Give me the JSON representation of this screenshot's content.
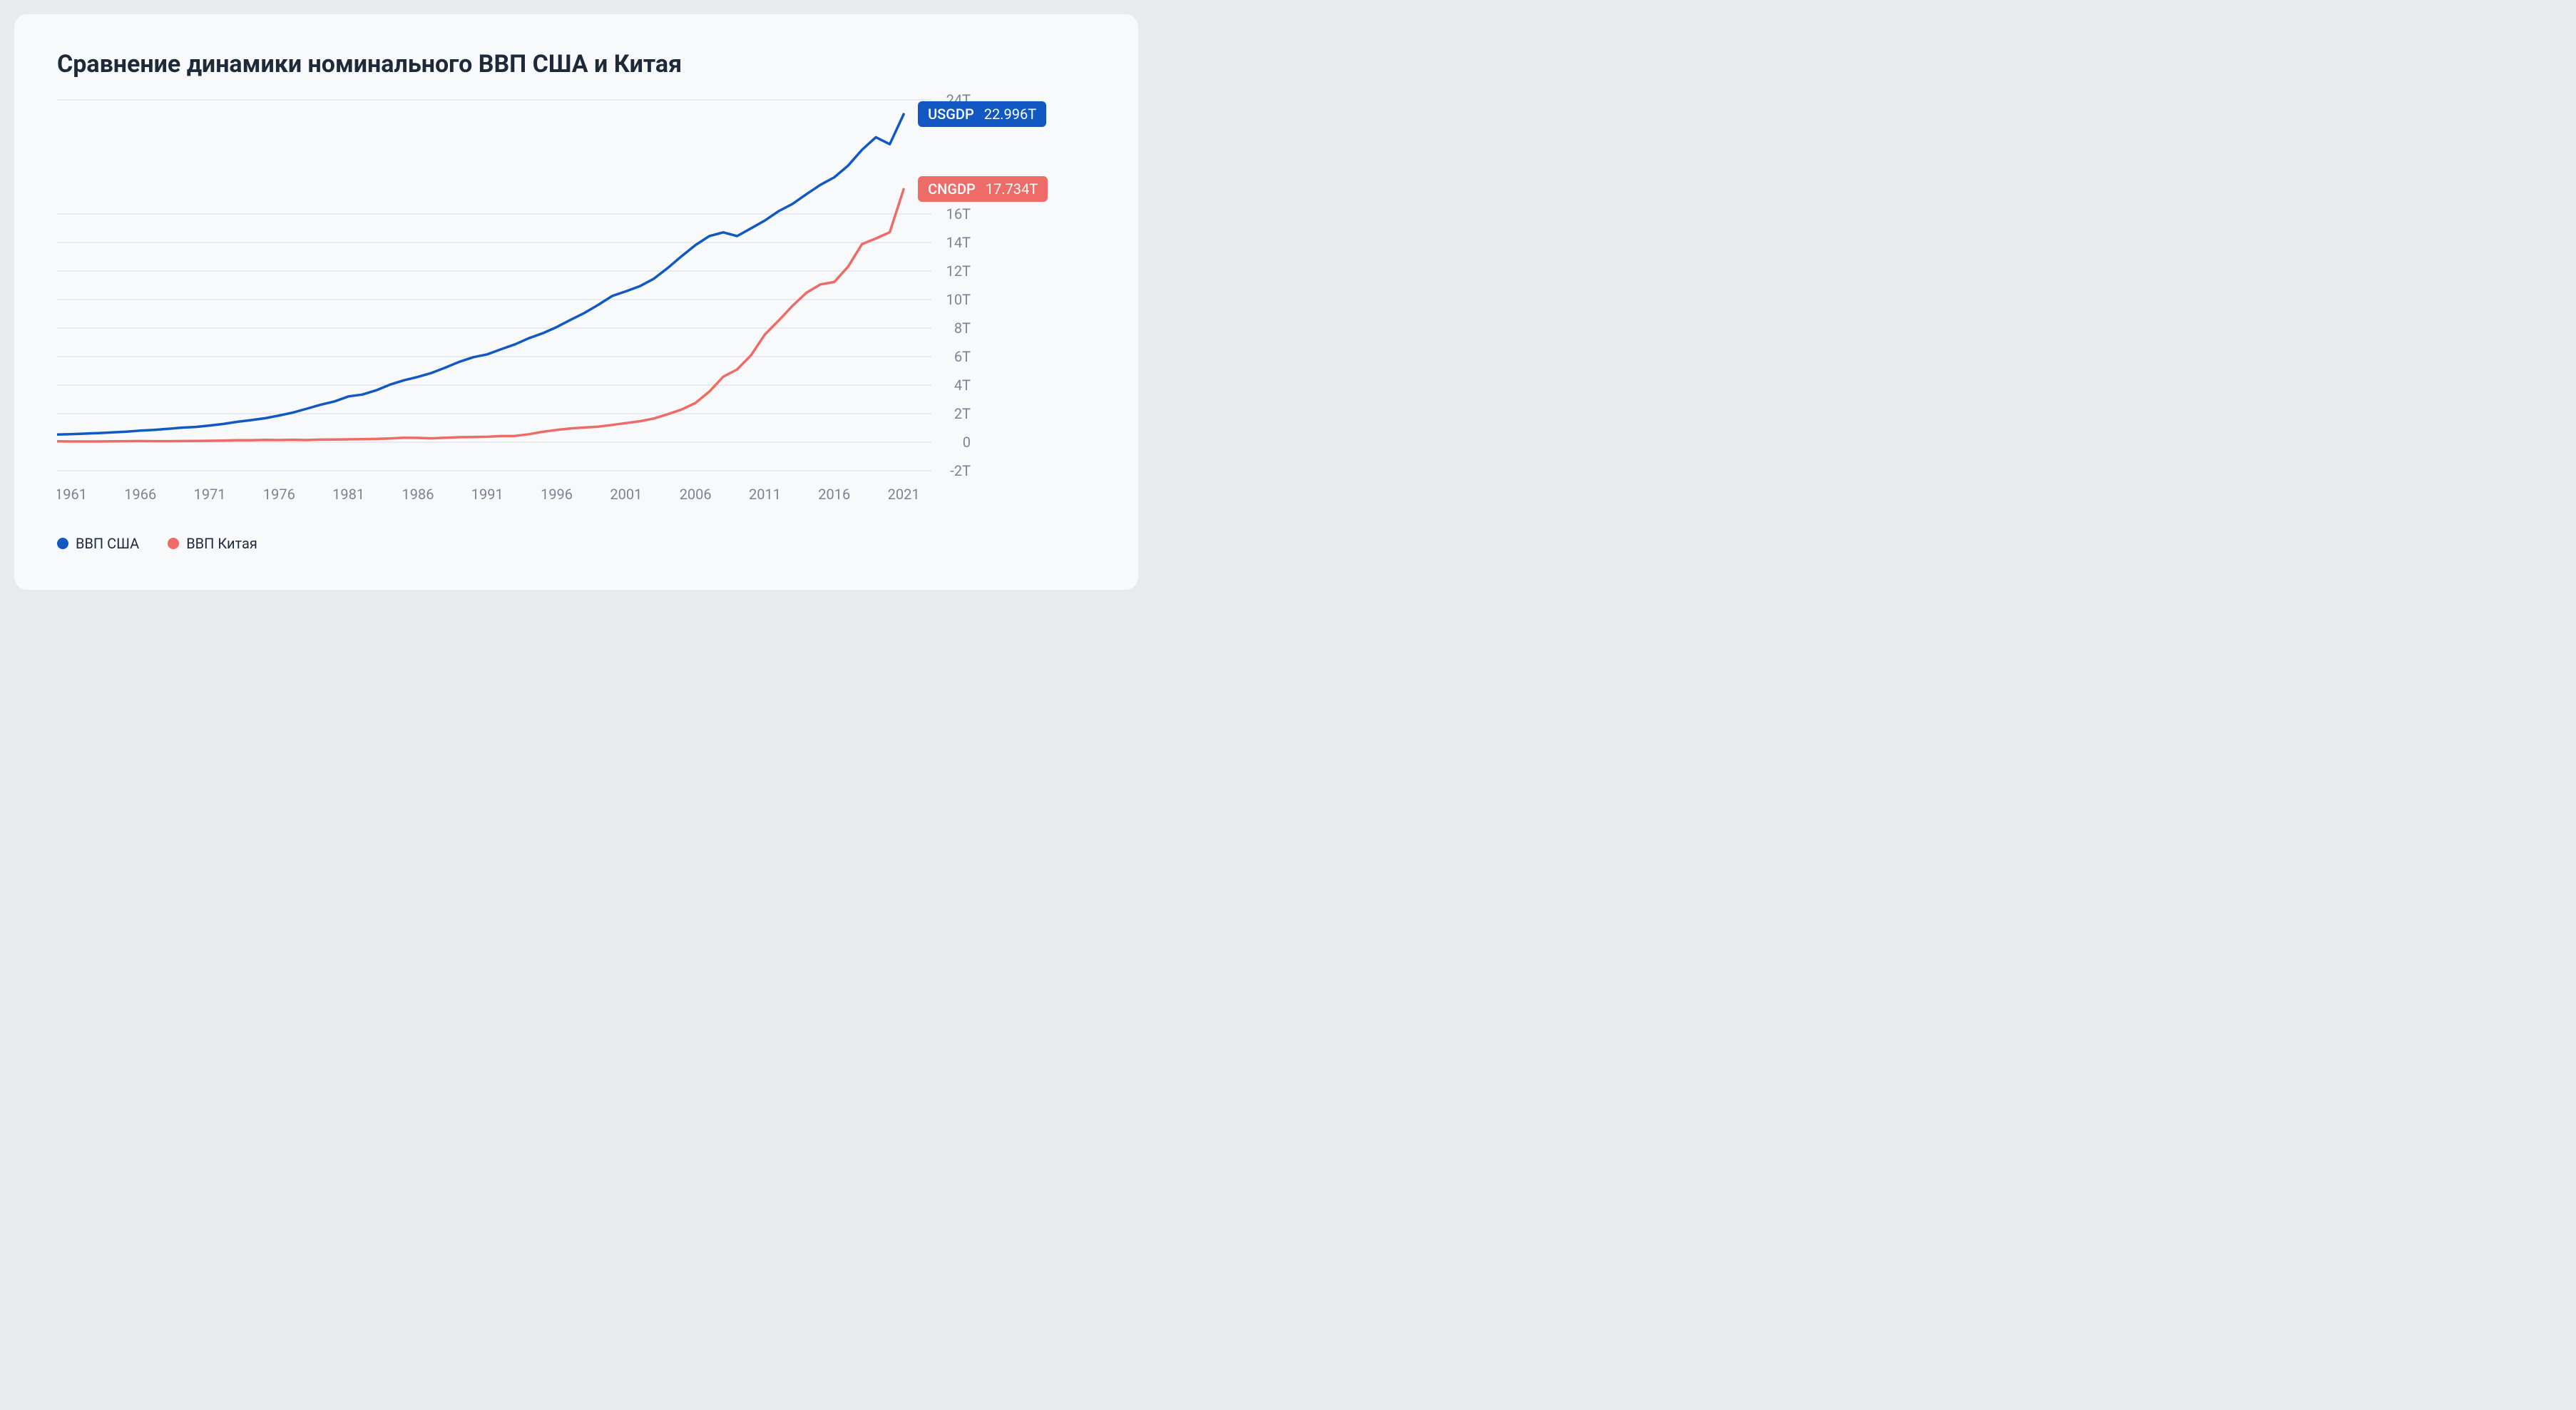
{
  "title": "Сравнение динамики номинального ВВП США и Китая",
  "chart": {
    "type": "line",
    "background_color": "#f7f9fb",
    "grid_color": "#d8dce3",
    "axis_label_color": "#7a8494",
    "axis_fontsize": 20,
    "title_fontsize": 34,
    "title_color": "#1e2a3a",
    "line_width": 3.5,
    "x": {
      "min": 1960,
      "max": 2023,
      "ticks": [
        1961,
        1966,
        1971,
        1976,
        1981,
        1986,
        1991,
        1996,
        2001,
        2006,
        2011,
        2016,
        2021
      ]
    },
    "y": {
      "min": -2,
      "max": 24,
      "ticks": [
        -2,
        0,
        2,
        4,
        6,
        8,
        10,
        12,
        14,
        16,
        24
      ],
      "tick_labels": [
        "-2T",
        "0",
        "2T",
        "4T",
        "6T",
        "8T",
        "10T",
        "12T",
        "14T",
        "16T",
        "24T"
      ]
    },
    "series": [
      {
        "id": "usgdp",
        "label": "ВВП США",
        "color": "#1158c2",
        "badge_bg": "#1158c2",
        "badge_label": "USGDP",
        "badge_value": "22.996T",
        "data": [
          [
            1960,
            0.54
          ],
          [
            1961,
            0.56
          ],
          [
            1962,
            0.6
          ],
          [
            1963,
            0.64
          ],
          [
            1964,
            0.69
          ],
          [
            1965,
            0.74
          ],
          [
            1966,
            0.81
          ],
          [
            1967,
            0.86
          ],
          [
            1968,
            0.94
          ],
          [
            1969,
            1.02
          ],
          [
            1970,
            1.07
          ],
          [
            1971,
            1.17
          ],
          [
            1972,
            1.28
          ],
          [
            1973,
            1.43
          ],
          [
            1974,
            1.55
          ],
          [
            1975,
            1.68
          ],
          [
            1976,
            1.87
          ],
          [
            1977,
            2.08
          ],
          [
            1978,
            2.35
          ],
          [
            1979,
            2.63
          ],
          [
            1980,
            2.86
          ],
          [
            1981,
            3.21
          ],
          [
            1982,
            3.34
          ],
          [
            1983,
            3.64
          ],
          [
            1984,
            4.04
          ],
          [
            1985,
            4.34
          ],
          [
            1986,
            4.58
          ],
          [
            1987,
            4.86
          ],
          [
            1988,
            5.24
          ],
          [
            1989,
            5.64
          ],
          [
            1990,
            5.96
          ],
          [
            1991,
            6.16
          ],
          [
            1992,
            6.52
          ],
          [
            1993,
            6.86
          ],
          [
            1994,
            7.29
          ],
          [
            1995,
            7.64
          ],
          [
            1996,
            8.07
          ],
          [
            1997,
            8.58
          ],
          [
            1998,
            9.06
          ],
          [
            1999,
            9.63
          ],
          [
            2000,
            10.25
          ],
          [
            2001,
            10.58
          ],
          [
            2002,
            10.94
          ],
          [
            2003,
            11.46
          ],
          [
            2004,
            12.21
          ],
          [
            2005,
            13.04
          ],
          [
            2006,
            13.82
          ],
          [
            2007,
            14.45
          ],
          [
            2008,
            14.71
          ],
          [
            2009,
            14.45
          ],
          [
            2010,
            14.99
          ],
          [
            2011,
            15.54
          ],
          [
            2012,
            16.2
          ],
          [
            2013,
            16.71
          ],
          [
            2014,
            17.39
          ],
          [
            2015,
            18.04
          ],
          [
            2016,
            18.57
          ],
          [
            2017,
            19.39
          ],
          [
            2018,
            20.5
          ],
          [
            2019,
            21.38
          ],
          [
            2020,
            20.89
          ],
          [
            2021,
            22.996
          ]
        ]
      },
      {
        "id": "cngdp",
        "label": "ВВП Китая",
        "color": "#ee6b67",
        "badge_bg": "#ee6b67",
        "badge_label": "CNGDP",
        "badge_value": "17.734T",
        "data": [
          [
            1960,
            0.06
          ],
          [
            1961,
            0.05
          ],
          [
            1962,
            0.05
          ],
          [
            1963,
            0.05
          ],
          [
            1964,
            0.06
          ],
          [
            1965,
            0.07
          ],
          [
            1966,
            0.08
          ],
          [
            1967,
            0.07
          ],
          [
            1968,
            0.07
          ],
          [
            1969,
            0.08
          ],
          [
            1970,
            0.09
          ],
          [
            1971,
            0.1
          ],
          [
            1972,
            0.11
          ],
          [
            1973,
            0.14
          ],
          [
            1974,
            0.14
          ],
          [
            1975,
            0.16
          ],
          [
            1976,
            0.15
          ],
          [
            1977,
            0.17
          ],
          [
            1978,
            0.15
          ],
          [
            1979,
            0.18
          ],
          [
            1980,
            0.19
          ],
          [
            1981,
            0.2
          ],
          [
            1982,
            0.21
          ],
          [
            1983,
            0.23
          ],
          [
            1984,
            0.26
          ],
          [
            1985,
            0.31
          ],
          [
            1986,
            0.3
          ],
          [
            1987,
            0.27
          ],
          [
            1988,
            0.31
          ],
          [
            1989,
            0.35
          ],
          [
            1990,
            0.36
          ],
          [
            1991,
            0.38
          ],
          [
            1992,
            0.43
          ],
          [
            1993,
            0.44
          ],
          [
            1994,
            0.56
          ],
          [
            1995,
            0.73
          ],
          [
            1996,
            0.86
          ],
          [
            1997,
            0.96
          ],
          [
            1998,
            1.03
          ],
          [
            1999,
            1.09
          ],
          [
            2000,
            1.21
          ],
          [
            2001,
            1.34
          ],
          [
            2002,
            1.47
          ],
          [
            2003,
            1.66
          ],
          [
            2004,
            1.96
          ],
          [
            2005,
            2.29
          ],
          [
            2006,
            2.75
          ],
          [
            2007,
            3.55
          ],
          [
            2008,
            4.59
          ],
          [
            2009,
            5.1
          ],
          [
            2010,
            6.09
          ],
          [
            2011,
            7.55
          ],
          [
            2012,
            8.53
          ],
          [
            2013,
            9.57
          ],
          [
            2014,
            10.48
          ],
          [
            2015,
            11.06
          ],
          [
            2016,
            11.23
          ],
          [
            2017,
            12.31
          ],
          [
            2018,
            13.89
          ],
          [
            2019,
            14.28
          ],
          [
            2020,
            14.72
          ],
          [
            2021,
            17.734
          ]
        ]
      }
    ]
  },
  "legend": [
    {
      "label": "ВВП США",
      "color": "#1158c2"
    },
    {
      "label": "ВВП Китая",
      "color": "#ee6b67"
    }
  ]
}
